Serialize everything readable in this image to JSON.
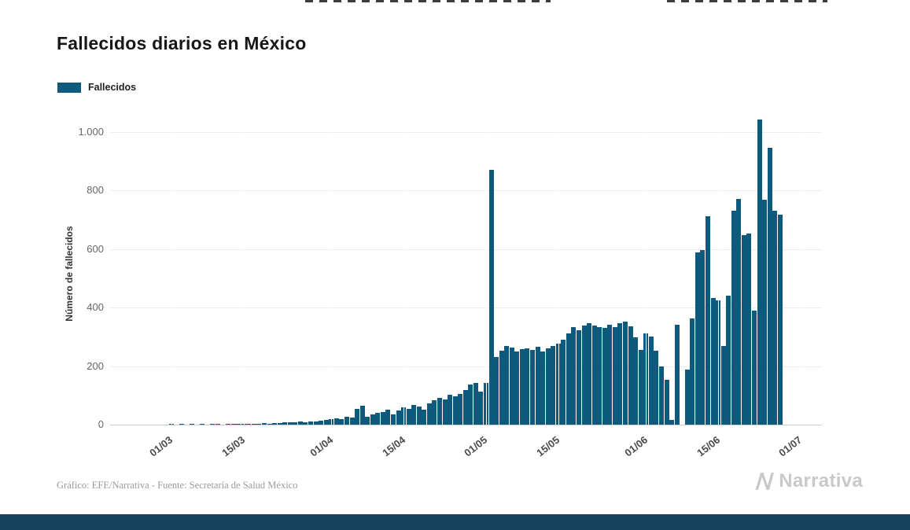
{
  "page": {
    "title": "Fallecidos diarios en México",
    "footer_credit": "Gráfico: EFE/Narrativa - Fuente: Secretaría de Salud México",
    "brand": "Narrativa"
  },
  "legend": {
    "label": "Fallecidos"
  },
  "colors": {
    "bar": "#0e5a7c",
    "bottom_bar": "#16425c",
    "brand_gray": "#c9c9c9",
    "grid": "#ededed",
    "axis_line": "#cccccc",
    "tick_text": "#666666"
  },
  "chart_data": {
    "type": "bar",
    "title": "Fallecidos diarios en México",
    "series_name": "Fallecidos",
    "xlabel": "",
    "ylabel": "Número de fallecidos",
    "ylim": [
      0,
      1050
    ],
    "grid": true,
    "legend_position": "top-left",
    "y_ticks": [
      {
        "value": 0,
        "label": "0"
      },
      {
        "value": 200,
        "label": "200"
      },
      {
        "value": 400,
        "label": "400"
      },
      {
        "value": 600,
        "label": "600"
      },
      {
        "value": 800,
        "label": "800"
      },
      {
        "value": 1000,
        "label": "1.000"
      }
    ],
    "x_ticks": [
      {
        "label": "01/03",
        "day": 0
      },
      {
        "label": "15/03",
        "day": 14
      },
      {
        "label": "01/04",
        "day": 31
      },
      {
        "label": "15/04",
        "day": 45
      },
      {
        "label": "01/05",
        "day": 61
      },
      {
        "label": "15/05",
        "day": 75
      },
      {
        "label": "01/06",
        "day": 92
      },
      {
        "label": "15/06",
        "day": 106
      },
      {
        "label": "01/07",
        "day": 122
      }
    ],
    "dates": [
      "01/03",
      "02/03",
      "03/03",
      "04/03",
      "05/03",
      "06/03",
      "07/03",
      "08/03",
      "09/03",
      "10/03",
      "11/03",
      "12/03",
      "13/03",
      "14/03",
      "15/03",
      "16/03",
      "17/03",
      "18/03",
      "19/03",
      "20/03",
      "21/03",
      "22/03",
      "23/03",
      "24/03",
      "25/03",
      "26/03",
      "27/03",
      "28/03",
      "29/03",
      "30/03",
      "31/03",
      "01/04",
      "02/04",
      "03/04",
      "04/04",
      "05/04",
      "06/04",
      "07/04",
      "08/04",
      "09/04",
      "10/04",
      "11/04",
      "12/04",
      "13/04",
      "14/04",
      "15/04",
      "16/04",
      "17/04",
      "18/04",
      "19/04",
      "20/04",
      "21/04",
      "22/04",
      "23/04",
      "24/04",
      "25/04",
      "26/04",
      "27/04",
      "28/04",
      "29/04",
      "30/04",
      "01/05",
      "02/05",
      "03/05",
      "04/05",
      "05/05",
      "06/05",
      "07/05",
      "08/05",
      "09/05",
      "10/05",
      "11/05",
      "12/05",
      "13/05",
      "14/05",
      "15/05",
      "16/05",
      "17/05",
      "18/05",
      "19/05",
      "20/05",
      "21/05",
      "22/05",
      "23/05",
      "24/05",
      "25/05",
      "26/05",
      "27/05",
      "28/05",
      "29/05",
      "30/05",
      "31/05",
      "01/06",
      "02/06",
      "03/06",
      "04/06",
      "05/06",
      "06/06",
      "07/06",
      "08/06",
      "09/06",
      "10/06",
      "11/06",
      "12/06",
      "13/06",
      "14/06",
      "15/06",
      "16/06",
      "17/06",
      "18/06",
      "19/06",
      "20/06",
      "21/06",
      "22/06",
      "23/06",
      "24/06",
      "25/06",
      "26/06",
      "27/06"
    ],
    "values": [
      1,
      0,
      1,
      0,
      1,
      0,
      1,
      0,
      1,
      1,
      0,
      1,
      1,
      1,
      2,
      3,
      2,
      4,
      5,
      4,
      6,
      5,
      7,
      8,
      7,
      10,
      9,
      12,
      10,
      14,
      16,
      18,
      22,
      20,
      26,
      24,
      55,
      65,
      28,
      34,
      40,
      44,
      50,
      36,
      48,
      60,
      55,
      66,
      62,
      52,
      72,
      82,
      92,
      86,
      102,
      96,
      104,
      118,
      136,
      142,
      112,
      142,
      870,
      232,
      252,
      270,
      264,
      250,
      258,
      262,
      256,
      266,
      250,
      262,
      270,
      278,
      290,
      312,
      332,
      322,
      338,
      346,
      340,
      334,
      330,
      342,
      332,
      346,
      352,
      336,
      298,
      255,
      312,
      302,
      252,
      198,
      152,
      15,
      342,
      0,
      188,
      362,
      588,
      596,
      712,
      432,
      424,
      270,
      440,
      730,
      772,
      648,
      652,
      390,
      1044,
      770,
      946,
      730,
      718
    ]
  }
}
